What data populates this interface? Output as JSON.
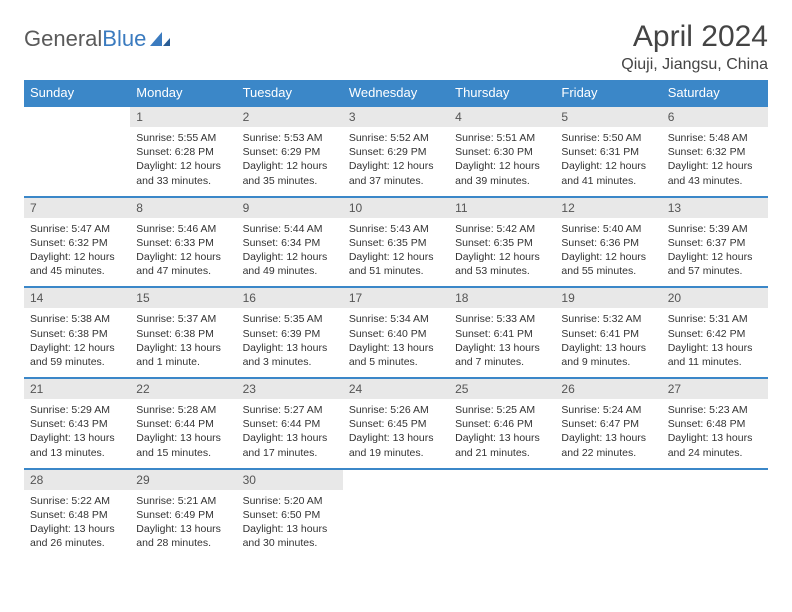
{
  "brand": {
    "text1": "General",
    "text2": "Blue"
  },
  "title": "April 2024",
  "location": "Qiuji, Jiangsu, China",
  "colors": {
    "header_bg": "#3b87c8",
    "header_text": "#ffffff",
    "daynum_bg": "#e8e8e8",
    "border": "#3b87c8",
    "body_text": "#333333",
    "title_text": "#444444"
  },
  "weekdays": [
    "Sunday",
    "Monday",
    "Tuesday",
    "Wednesday",
    "Thursday",
    "Friday",
    "Saturday"
  ],
  "start_blank": 1,
  "days": [
    {
      "n": 1,
      "sunrise": "5:55 AM",
      "sunset": "6:28 PM",
      "daylight": "12 hours and 33 minutes."
    },
    {
      "n": 2,
      "sunrise": "5:53 AM",
      "sunset": "6:29 PM",
      "daylight": "12 hours and 35 minutes."
    },
    {
      "n": 3,
      "sunrise": "5:52 AM",
      "sunset": "6:29 PM",
      "daylight": "12 hours and 37 minutes."
    },
    {
      "n": 4,
      "sunrise": "5:51 AM",
      "sunset": "6:30 PM",
      "daylight": "12 hours and 39 minutes."
    },
    {
      "n": 5,
      "sunrise": "5:50 AM",
      "sunset": "6:31 PM",
      "daylight": "12 hours and 41 minutes."
    },
    {
      "n": 6,
      "sunrise": "5:48 AM",
      "sunset": "6:32 PM",
      "daylight": "12 hours and 43 minutes."
    },
    {
      "n": 7,
      "sunrise": "5:47 AM",
      "sunset": "6:32 PM",
      "daylight": "12 hours and 45 minutes."
    },
    {
      "n": 8,
      "sunrise": "5:46 AM",
      "sunset": "6:33 PM",
      "daylight": "12 hours and 47 minutes."
    },
    {
      "n": 9,
      "sunrise": "5:44 AM",
      "sunset": "6:34 PM",
      "daylight": "12 hours and 49 minutes."
    },
    {
      "n": 10,
      "sunrise": "5:43 AM",
      "sunset": "6:35 PM",
      "daylight": "12 hours and 51 minutes."
    },
    {
      "n": 11,
      "sunrise": "5:42 AM",
      "sunset": "6:35 PM",
      "daylight": "12 hours and 53 minutes."
    },
    {
      "n": 12,
      "sunrise": "5:40 AM",
      "sunset": "6:36 PM",
      "daylight": "12 hours and 55 minutes."
    },
    {
      "n": 13,
      "sunrise": "5:39 AM",
      "sunset": "6:37 PM",
      "daylight": "12 hours and 57 minutes."
    },
    {
      "n": 14,
      "sunrise": "5:38 AM",
      "sunset": "6:38 PM",
      "daylight": "12 hours and 59 minutes."
    },
    {
      "n": 15,
      "sunrise": "5:37 AM",
      "sunset": "6:38 PM",
      "daylight": "13 hours and 1 minute."
    },
    {
      "n": 16,
      "sunrise": "5:35 AM",
      "sunset": "6:39 PM",
      "daylight": "13 hours and 3 minutes."
    },
    {
      "n": 17,
      "sunrise": "5:34 AM",
      "sunset": "6:40 PM",
      "daylight": "13 hours and 5 minutes."
    },
    {
      "n": 18,
      "sunrise": "5:33 AM",
      "sunset": "6:41 PM",
      "daylight": "13 hours and 7 minutes."
    },
    {
      "n": 19,
      "sunrise": "5:32 AM",
      "sunset": "6:41 PM",
      "daylight": "13 hours and 9 minutes."
    },
    {
      "n": 20,
      "sunrise": "5:31 AM",
      "sunset": "6:42 PM",
      "daylight": "13 hours and 11 minutes."
    },
    {
      "n": 21,
      "sunrise": "5:29 AM",
      "sunset": "6:43 PM",
      "daylight": "13 hours and 13 minutes."
    },
    {
      "n": 22,
      "sunrise": "5:28 AM",
      "sunset": "6:44 PM",
      "daylight": "13 hours and 15 minutes."
    },
    {
      "n": 23,
      "sunrise": "5:27 AM",
      "sunset": "6:44 PM",
      "daylight": "13 hours and 17 minutes."
    },
    {
      "n": 24,
      "sunrise": "5:26 AM",
      "sunset": "6:45 PM",
      "daylight": "13 hours and 19 minutes."
    },
    {
      "n": 25,
      "sunrise": "5:25 AM",
      "sunset": "6:46 PM",
      "daylight": "13 hours and 21 minutes."
    },
    {
      "n": 26,
      "sunrise": "5:24 AM",
      "sunset": "6:47 PM",
      "daylight": "13 hours and 22 minutes."
    },
    {
      "n": 27,
      "sunrise": "5:23 AM",
      "sunset": "6:48 PM",
      "daylight": "13 hours and 24 minutes."
    },
    {
      "n": 28,
      "sunrise": "5:22 AM",
      "sunset": "6:48 PM",
      "daylight": "13 hours and 26 minutes."
    },
    {
      "n": 29,
      "sunrise": "5:21 AM",
      "sunset": "6:49 PM",
      "daylight": "13 hours and 28 minutes."
    },
    {
      "n": 30,
      "sunrise": "5:20 AM",
      "sunset": "6:50 PM",
      "daylight": "13 hours and 30 minutes."
    }
  ],
  "labels": {
    "sunrise": "Sunrise: ",
    "sunset": "Sunset: ",
    "daylight": "Daylight: "
  }
}
